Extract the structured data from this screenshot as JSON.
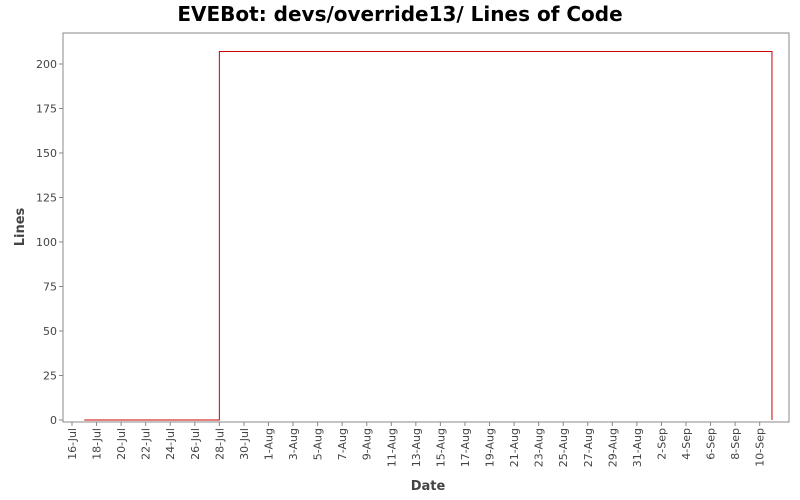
{
  "chart_data": {
    "type": "line",
    "title": "EVEBot: devs/override13/ Lines of Code",
    "xlabel": "Date",
    "ylabel": "Lines",
    "ylim": [
      0,
      220
    ],
    "yticks": [
      "0",
      "25",
      "50",
      "75",
      "100",
      "125",
      "150",
      "175",
      "200"
    ],
    "xticks": [
      "16-Jul",
      "18-Jul",
      "20-Jul",
      "22-Jul",
      "24-Jul",
      "26-Jul",
      "28-Jul",
      "30-Jul",
      "1-Aug",
      "3-Aug",
      "5-Aug",
      "7-Aug",
      "9-Aug",
      "11-Aug",
      "13-Aug",
      "15-Aug",
      "17-Aug",
      "19-Aug",
      "21-Aug",
      "23-Aug",
      "25-Aug",
      "27-Aug",
      "29-Aug",
      "31-Aug",
      "2-Sep",
      "4-Sep",
      "6-Sep",
      "8-Sep",
      "10-Sep"
    ],
    "grid": false,
    "series": [
      {
        "color": "#cc0000",
        "points": [
          {
            "x": "2008-07-17",
            "y": 0
          },
          {
            "x": "2008-07-28",
            "y": 207
          },
          {
            "x": "2008-09-11",
            "y": 207
          },
          {
            "x": "2008-09-11",
            "y": 0
          }
        ]
      }
    ]
  }
}
